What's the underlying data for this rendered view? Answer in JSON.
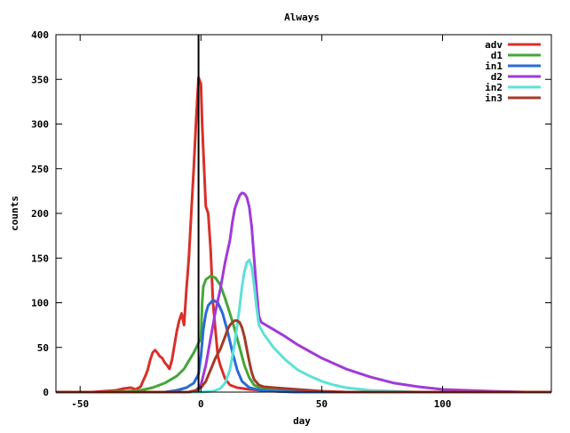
{
  "chart_data": {
    "type": "line",
    "title": "Always",
    "xlabel": "day",
    "ylabel": "counts",
    "xlim": [
      -60,
      145
    ],
    "ylim": [
      0,
      400
    ],
    "x_ticks": [
      -50,
      0,
      50,
      100
    ],
    "y_ticks": [
      0,
      50,
      100,
      150,
      200,
      250,
      300,
      350,
      400
    ],
    "grid": false,
    "legend_position": "top-right",
    "vertical_marker_x": -1,
    "series": [
      {
        "name": "adv",
        "color": "#d8302a",
        "points": [
          [
            -60,
            0
          ],
          [
            -45,
            0
          ],
          [
            -40,
            1
          ],
          [
            -35,
            2
          ],
          [
            -32,
            4
          ],
          [
            -29,
            5
          ],
          [
            -27,
            3
          ],
          [
            -25,
            6
          ],
          [
            -24,
            12
          ],
          [
            -23,
            18
          ],
          [
            -22,
            25
          ],
          [
            -21,
            36
          ],
          [
            -20,
            44
          ],
          [
            -19,
            47
          ],
          [
            -18,
            44
          ],
          [
            -17,
            40
          ],
          [
            -16,
            38
          ],
          [
            -15,
            33
          ],
          [
            -14,
            30
          ],
          [
            -13,
            26
          ],
          [
            -12,
            36
          ],
          [
            -11,
            52
          ],
          [
            -10,
            68
          ],
          [
            -9,
            80
          ],
          [
            -8,
            88
          ],
          [
            -7,
            75
          ],
          [
            -6,
            115
          ],
          [
            -5,
            150
          ],
          [
            -4,
            200
          ],
          [
            -3,
            250
          ],
          [
            -2,
            305
          ],
          [
            -1,
            352
          ],
          [
            0,
            345
          ],
          [
            0.5,
            300
          ],
          [
            1,
            270
          ],
          [
            2,
            208
          ],
          [
            3,
            200
          ],
          [
            4,
            160
          ],
          [
            5,
            100
          ],
          [
            6,
            70
          ],
          [
            7,
            40
          ],
          [
            8,
            30
          ],
          [
            10,
            15
          ],
          [
            12,
            8
          ],
          [
            15,
            5
          ],
          [
            20,
            3
          ],
          [
            30,
            1
          ],
          [
            40,
            0
          ],
          [
            145,
            0
          ]
        ]
      },
      {
        "name": "d1",
        "color": "#44a638",
        "points": [
          [
            -60,
            0
          ],
          [
            -40,
            0
          ],
          [
            -30,
            1
          ],
          [
            -25,
            2
          ],
          [
            -20,
            5
          ],
          [
            -15,
            10
          ],
          [
            -10,
            18
          ],
          [
            -7,
            26
          ],
          [
            -5,
            35
          ],
          [
            -3,
            44
          ],
          [
            -1,
            55
          ],
          [
            0,
            60
          ],
          [
            0.5,
            100
          ],
          [
            1,
            118
          ],
          [
            2,
            126
          ],
          [
            4,
            130
          ],
          [
            6,
            128
          ],
          [
            8,
            120
          ],
          [
            10,
            105
          ],
          [
            12,
            88
          ],
          [
            14,
            70
          ],
          [
            16,
            50
          ],
          [
            18,
            30
          ],
          [
            20,
            16
          ],
          [
            22,
            8
          ],
          [
            25,
            4
          ],
          [
            30,
            2
          ],
          [
            40,
            1
          ],
          [
            50,
            0
          ],
          [
            145,
            0
          ]
        ]
      },
      {
        "name": "in1",
        "color": "#2a6bd6",
        "points": [
          [
            -60,
            0
          ],
          [
            -15,
            0
          ],
          [
            -10,
            2
          ],
          [
            -6,
            5
          ],
          [
            -3,
            10
          ],
          [
            -1,
            20
          ],
          [
            0,
            40
          ],
          [
            1,
            70
          ],
          [
            2,
            88
          ],
          [
            3,
            97
          ],
          [
            5,
            103
          ],
          [
            7,
            100
          ],
          [
            9,
            88
          ],
          [
            11,
            68
          ],
          [
            13,
            45
          ],
          [
            15,
            25
          ],
          [
            17,
            12
          ],
          [
            20,
            5
          ],
          [
            25,
            2
          ],
          [
            30,
            1
          ],
          [
            40,
            0
          ],
          [
            145,
            0
          ]
        ]
      },
      {
        "name": "d2",
        "color": "#a03ad8",
        "points": [
          [
            -60,
            0
          ],
          [
            -5,
            0
          ],
          [
            -2,
            2
          ],
          [
            0,
            8
          ],
          [
            2,
            30
          ],
          [
            4,
            60
          ],
          [
            6,
            90
          ],
          [
            8,
            115
          ],
          [
            10,
            145
          ],
          [
            12,
            170
          ],
          [
            13,
            190
          ],
          [
            14,
            205
          ],
          [
            15,
            213
          ],
          [
            16,
            220
          ],
          [
            17,
            223
          ],
          [
            18,
            222
          ],
          [
            19,
            218
          ],
          [
            20,
            207
          ],
          [
            21,
            185
          ],
          [
            22,
            150
          ],
          [
            23,
            115
          ],
          [
            24,
            85
          ],
          [
            25,
            78
          ],
          [
            30,
            70
          ],
          [
            35,
            62
          ],
          [
            40,
            53
          ],
          [
            50,
            38
          ],
          [
            60,
            26
          ],
          [
            70,
            17
          ],
          [
            80,
            10
          ],
          [
            90,
            6
          ],
          [
            100,
            3
          ],
          [
            110,
            2
          ],
          [
            120,
            1
          ],
          [
            135,
            0
          ],
          [
            145,
            0
          ]
        ]
      },
      {
        "name": "in2",
        "color": "#5ee0d8",
        "points": [
          [
            -60,
            0
          ],
          [
            0,
            0
          ],
          [
            5,
            1
          ],
          [
            8,
            4
          ],
          [
            10,
            10
          ],
          [
            12,
            25
          ],
          [
            14,
            55
          ],
          [
            16,
            95
          ],
          [
            17,
            118
          ],
          [
            18,
            135
          ],
          [
            19,
            145
          ],
          [
            20,
            148
          ],
          [
            21,
            140
          ],
          [
            22,
            120
          ],
          [
            23,
            95
          ],
          [
            24,
            75
          ],
          [
            26,
            65
          ],
          [
            30,
            50
          ],
          [
            35,
            36
          ],
          [
            40,
            25
          ],
          [
            45,
            18
          ],
          [
            50,
            12
          ],
          [
            55,
            8
          ],
          [
            60,
            5
          ],
          [
            70,
            2
          ],
          [
            80,
            1
          ],
          [
            90,
            0
          ],
          [
            145,
            0
          ]
        ]
      },
      {
        "name": "in3",
        "color": "#a43a26",
        "points": [
          [
            -60,
            0
          ],
          [
            -5,
            0
          ],
          [
            -2,
            2
          ],
          [
            0,
            5
          ],
          [
            2,
            12
          ],
          [
            4,
            25
          ],
          [
            6,
            38
          ],
          [
            8,
            48
          ],
          [
            10,
            62
          ],
          [
            11,
            70
          ],
          [
            12,
            75
          ],
          [
            13,
            78
          ],
          [
            14,
            80
          ],
          [
            15,
            80
          ],
          [
            16,
            78
          ],
          [
            17,
            72
          ],
          [
            18,
            62
          ],
          [
            19,
            48
          ],
          [
            20,
            34
          ],
          [
            21,
            22
          ],
          [
            22,
            14
          ],
          [
            24,
            8
          ],
          [
            26,
            6
          ],
          [
            30,
            5
          ],
          [
            35,
            4
          ],
          [
            40,
            3
          ],
          [
            45,
            2
          ],
          [
            50,
            1
          ],
          [
            60,
            0
          ],
          [
            145,
            0
          ]
        ]
      }
    ]
  }
}
